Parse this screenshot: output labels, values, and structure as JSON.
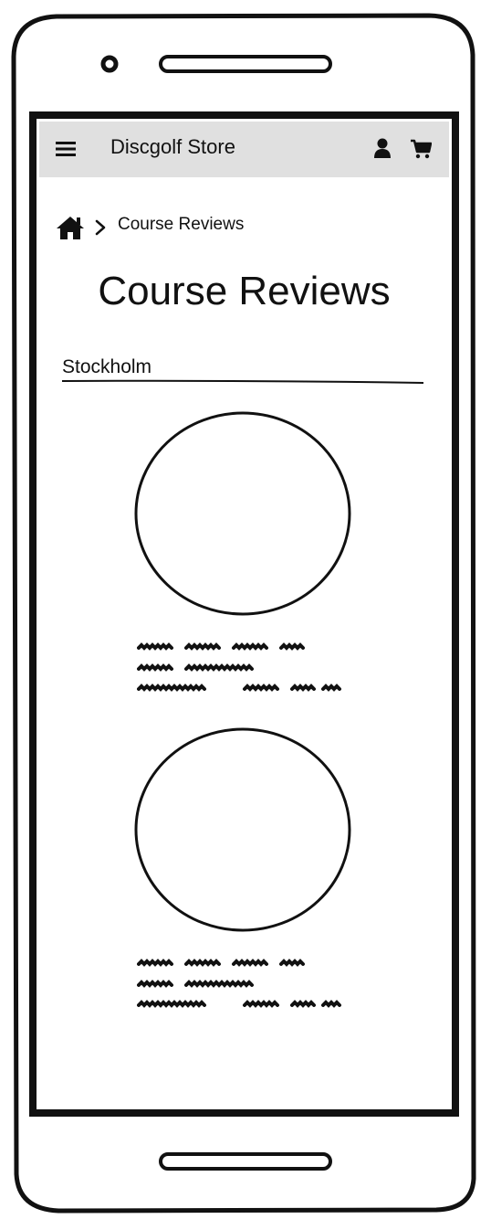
{
  "app_bar": {
    "title": "Discgolf Store",
    "menu_icon": "hamburger-menu-icon",
    "user_icon": "user-icon",
    "cart_icon": "shopping-cart-icon",
    "background": "#e0e0e0"
  },
  "breadcrumb": {
    "home_icon": "home-icon",
    "separator_icon": "chevron-right-icon",
    "current": "Course Reviews"
  },
  "page": {
    "title": "Course Reviews"
  },
  "location": {
    "value": "Stockholm"
  },
  "reviews": [
    {
      "image": "image-placeholder",
      "text": "scribbled placeholder text"
    },
    {
      "image": "image-placeholder",
      "text": "scribbled placeholder text"
    }
  ],
  "colors": {
    "ink": "#111111",
    "app_bar_fill": "#e0e0e0",
    "page": "#ffffff"
  }
}
